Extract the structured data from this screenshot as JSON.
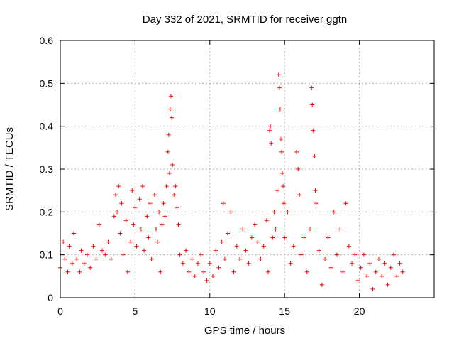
{
  "chart_data": {
    "type": "scatter",
    "title": "Day 332 of 2021, SRMTID for receiver ggtn",
    "xlabel": "GPS time / hours",
    "ylabel": "SRMTID / TECUs",
    "xlim": [
      0,
      25
    ],
    "ylim": [
      0,
      0.6
    ],
    "xticks": [
      0,
      5,
      10,
      15,
      20
    ],
    "xtick_labels": [
      "0",
      "5",
      "10",
      "15",
      "20"
    ],
    "yticks": [
      0,
      0.1,
      0.2,
      0.3,
      0.4,
      0.5,
      0.6
    ],
    "ytick_labels": [
      "0",
      "0.1",
      "0.2",
      "0.3",
      "0.4",
      "0.5",
      "0.6"
    ],
    "grid": true,
    "marker": "plus",
    "color": "#ff0000",
    "series": [
      {
        "name": "SRMTID",
        "points": [
          [
            0.0,
            0.07
          ],
          [
            0.2,
            0.13
          ],
          [
            0.3,
            0.09
          ],
          [
            0.5,
            0.06
          ],
          [
            0.6,
            0.12
          ],
          [
            0.8,
            0.08
          ],
          [
            0.9,
            0.15
          ],
          [
            1.1,
            0.09
          ],
          [
            1.3,
            0.06
          ],
          [
            1.4,
            0.11
          ],
          [
            1.6,
            0.08
          ],
          [
            1.8,
            0.1
          ],
          [
            2.0,
            0.07
          ],
          [
            2.2,
            0.12
          ],
          [
            2.4,
            0.09
          ],
          [
            2.6,
            0.17
          ],
          [
            2.8,
            0.11
          ],
          [
            3.0,
            0.1
          ],
          [
            3.2,
            0.13
          ],
          [
            3.4,
            0.09
          ],
          [
            3.6,
            0.19
          ],
          [
            3.7,
            0.24
          ],
          [
            3.8,
            0.2
          ],
          [
            3.9,
            0.26
          ],
          [
            4.0,
            0.15
          ],
          [
            4.1,
            0.22
          ],
          [
            4.2,
            0.1
          ],
          [
            4.4,
            0.18
          ],
          [
            4.5,
            0.06
          ],
          [
            4.7,
            0.13
          ],
          [
            4.8,
            0.25
          ],
          [
            4.9,
            0.17
          ],
          [
            5.0,
            0.21
          ],
          [
            5.1,
            0.12
          ],
          [
            5.3,
            0.23
          ],
          [
            5.4,
            0.16
          ],
          [
            5.5,
            0.26
          ],
          [
            5.6,
            0.11
          ],
          [
            5.8,
            0.19
          ],
          [
            5.9,
            0.14
          ],
          [
            6.0,
            0.22
          ],
          [
            6.1,
            0.09
          ],
          [
            6.3,
            0.24
          ],
          [
            6.4,
            0.16
          ],
          [
            6.5,
            0.13
          ],
          [
            6.6,
            0.2
          ],
          [
            6.7,
            0.06
          ],
          [
            6.8,
            0.17
          ],
          [
            6.9,
            0.22
          ],
          [
            7.0,
            0.19
          ],
          [
            7.1,
            0.26
          ],
          [
            7.2,
            0.34
          ],
          [
            7.25,
            0.38
          ],
          [
            7.3,
            0.29
          ],
          [
            7.35,
            0.44
          ],
          [
            7.4,
            0.47
          ],
          [
            7.45,
            0.42
          ],
          [
            7.5,
            0.31
          ],
          [
            7.6,
            0.24
          ],
          [
            7.7,
            0.26
          ],
          [
            7.8,
            0.21
          ],
          [
            7.9,
            0.17
          ],
          [
            8.0,
            0.1
          ],
          [
            8.2,
            0.08
          ],
          [
            8.4,
            0.11
          ],
          [
            8.6,
            0.06
          ],
          [
            8.8,
            0.09
          ],
          [
            9.0,
            0.05
          ],
          [
            9.2,
            0.08
          ],
          [
            9.4,
            0.1
          ],
          [
            9.6,
            0.06
          ],
          [
            9.8,
            0.04
          ],
          [
            10.0,
            0.08
          ],
          [
            10.2,
            0.05
          ],
          [
            10.4,
            0.11
          ],
          [
            10.6,
            0.07
          ],
          [
            10.8,
            0.13
          ],
          [
            10.9,
            0.22
          ],
          [
            11.0,
            0.09
          ],
          [
            11.2,
            0.15
          ],
          [
            11.4,
            0.2
          ],
          [
            11.6,
            0.06
          ],
          [
            11.8,
            0.12
          ],
          [
            12.0,
            0.09
          ],
          [
            12.2,
            0.16
          ],
          [
            12.4,
            0.11
          ],
          [
            12.6,
            0.08
          ],
          [
            12.8,
            0.14
          ],
          [
            13.0,
            0.17
          ],
          [
            13.2,
            0.13
          ],
          [
            13.4,
            0.09
          ],
          [
            13.6,
            0.12
          ],
          [
            13.8,
            0.18
          ],
          [
            13.9,
            0.06
          ],
          [
            14.0,
            0.39
          ],
          [
            14.05,
            0.4
          ],
          [
            14.1,
            0.36
          ],
          [
            14.2,
            0.14
          ],
          [
            14.3,
            0.2
          ],
          [
            14.4,
            0.16
          ],
          [
            14.5,
            0.25
          ],
          [
            14.6,
            0.52
          ],
          [
            14.65,
            0.49
          ],
          [
            14.7,
            0.44
          ],
          [
            14.75,
            0.37
          ],
          [
            14.8,
            0.34
          ],
          [
            14.85,
            0.29
          ],
          [
            14.9,
            0.26
          ],
          [
            14.95,
            0.22
          ],
          [
            15.0,
            0.14
          ],
          [
            15.2,
            0.2
          ],
          [
            15.4,
            0.08
          ],
          [
            15.6,
            0.12
          ],
          [
            15.8,
            0.34
          ],
          [
            15.9,
            0.3
          ],
          [
            16.0,
            0.24
          ],
          [
            16.1,
            0.1
          ],
          [
            16.3,
            0.14
          ],
          [
            16.5,
            0.06
          ],
          [
            16.7,
            0.16
          ],
          [
            16.8,
            0.49
          ],
          [
            16.85,
            0.45
          ],
          [
            16.9,
            0.39
          ],
          [
            17.0,
            0.33
          ],
          [
            17.05,
            0.25
          ],
          [
            17.1,
            0.22
          ],
          [
            17.3,
            0.11
          ],
          [
            17.5,
            0.03
          ],
          [
            17.7,
            0.09
          ],
          [
            17.9,
            0.14
          ],
          [
            18.1,
            0.07
          ],
          [
            18.3,
            0.2
          ],
          [
            18.5,
            0.1
          ],
          [
            18.7,
            0.16
          ],
          [
            18.9,
            0.06
          ],
          [
            19.1,
            0.22
          ],
          [
            19.3,
            0.12
          ],
          [
            19.5,
            0.08
          ],
          [
            19.7,
            0.1
          ],
          [
            19.9,
            0.04
          ],
          [
            20.1,
            0.07
          ],
          [
            20.3,
            0.1
          ],
          [
            20.5,
            0.05
          ],
          [
            20.7,
            0.08
          ],
          [
            20.9,
            0.02
          ],
          [
            21.1,
            0.06
          ],
          [
            21.3,
            0.09
          ],
          [
            21.5,
            0.05
          ],
          [
            21.7,
            0.08
          ],
          [
            21.9,
            0.03
          ],
          [
            22.1,
            0.07
          ],
          [
            22.3,
            0.1
          ],
          [
            22.5,
            0.05
          ],
          [
            22.7,
            0.08
          ],
          [
            22.9,
            0.06
          ]
        ]
      }
    ]
  }
}
